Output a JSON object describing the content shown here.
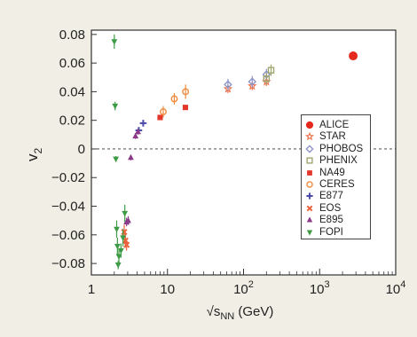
{
  "chart_data": {
    "type": "scatter",
    "xscale": "log",
    "xlim": [
      1,
      10000
    ],
    "ylim": [
      -0.088,
      0.083
    ],
    "ylabel": "v",
    "ylabel_sub": "2",
    "xlabel_root": "√s",
    "xlabel_sub": "NN",
    "xlabel_unit": " (GeV)",
    "x_ticks": [
      {
        "value": 1,
        "base": "1",
        "exp": ""
      },
      {
        "value": 10,
        "base": "10",
        "exp": ""
      },
      {
        "value": 100,
        "base": "10",
        "exp": "2"
      },
      {
        "value": 1000,
        "base": "10",
        "exp": "3"
      },
      {
        "value": 10000,
        "base": "10",
        "exp": "4"
      }
    ],
    "y_ticks": [
      {
        "value": 0.08,
        "label": "0.08"
      },
      {
        "value": 0.06,
        "label": "0.06"
      },
      {
        "value": 0.04,
        "label": "0.04"
      },
      {
        "value": 0.02,
        "label": "0.02"
      },
      {
        "value": 0,
        "label": "0"
      },
      {
        "value": -0.02,
        "label": "−0.02"
      },
      {
        "value": -0.04,
        "label": "−0.04"
      },
      {
        "value": -0.06,
        "label": "−0.06"
      },
      {
        "value": -0.08,
        "label": "−0.08"
      }
    ],
    "zero_line": "dashed",
    "grid": false,
    "legend_position": "right",
    "series": [
      {
        "name": "ALICE",
        "marker": "circle-filled",
        "color": "#e52a1d",
        "points": [
          {
            "x": 2760,
            "y": 0.065,
            "err": 0.003
          }
        ]
      },
      {
        "name": "STAR",
        "marker": "star-open",
        "color": "#ec6f49",
        "points": [
          {
            "x": 62.4,
            "y": 0.042,
            "err": 0.003
          },
          {
            "x": 130,
            "y": 0.044,
            "err": 0.003
          },
          {
            "x": 200,
            "y": 0.047,
            "err": 0.003
          }
        ]
      },
      {
        "name": "PHOBOS",
        "marker": "diamond-open",
        "color": "#8e95c6",
        "points": [
          {
            "x": 62.4,
            "y": 0.045,
            "err": 0.004
          },
          {
            "x": 130,
            "y": 0.047,
            "err": 0.004
          },
          {
            "x": 200,
            "y": 0.052,
            "err": 0.004
          }
        ]
      },
      {
        "name": "PHENIX",
        "marker": "square-open",
        "color": "#a1a56e",
        "points": [
          {
            "x": 200,
            "y": 0.049,
            "err": 0.004
          },
          {
            "x": 230,
            "y": 0.055,
            "err": 0.004
          }
        ]
      },
      {
        "name": "NA49",
        "marker": "square-filled",
        "color": "#e3372b",
        "points": [
          {
            "x": 8.0,
            "y": 0.022,
            "err": 0.001
          },
          {
            "x": 17.2,
            "y": 0.029,
            "err": 0.001
          }
        ]
      },
      {
        "name": "CERES",
        "marker": "circle-open",
        "color": "#ef8a3d",
        "points": [
          {
            "x": 8.8,
            "y": 0.026,
            "err": 0.004
          },
          {
            "x": 12.3,
            "y": 0.035,
            "err": 0.004
          },
          {
            "x": 17.3,
            "y": 0.04,
            "err": 0.005
          }
        ]
      },
      {
        "name": "E877",
        "marker": "cross-plus",
        "color": "#4b4baa",
        "points": [
          {
            "x": 4.2,
            "y": 0.013,
            "err": 0.002
          },
          {
            "x": 4.8,
            "y": 0.018,
            "err": 0.002
          }
        ]
      },
      {
        "name": "EOS",
        "marker": "cross-x",
        "color": "#e9623a",
        "points": [
          {
            "x": 2.7,
            "y": -0.058,
            "err": 0.005
          },
          {
            "x": 2.8,
            "y": -0.064,
            "err": 0.005
          },
          {
            "x": 2.9,
            "y": -0.067,
            "err": 0.004
          }
        ]
      },
      {
        "name": "E895",
        "marker": "triangle-up",
        "color": "#8b3a8a",
        "points": [
          {
            "x": 3.3,
            "y": -0.006,
            "err": 0.002
          },
          {
            "x": 3.8,
            "y": 0.009,
            "err": 0.002
          },
          {
            "x": 4.1,
            "y": 0.012,
            "err": 0.002
          },
          {
            "x": 2.9,
            "y": -0.051,
            "err": 0.003
          },
          {
            "x": 3.05,
            "y": -0.05,
            "err": 0.003
          }
        ]
      },
      {
        "name": "FOPI",
        "marker": "triangle-down",
        "color": "#3e9b45",
        "points": [
          {
            "x": 2.0,
            "y": 0.075,
            "err": 0.005
          },
          {
            "x": 2.05,
            "y": 0.03,
            "err": 0.003
          },
          {
            "x": 2.1,
            "y": -0.007,
            "err": 0.002
          },
          {
            "x": 2.15,
            "y": -0.056,
            "err": 0.006
          },
          {
            "x": 2.2,
            "y": -0.068,
            "err": 0.006
          },
          {
            "x": 2.3,
            "y": -0.075,
            "err": 0.005
          },
          {
            "x": 2.25,
            "y": -0.081,
            "err": 0.003
          },
          {
            "x": 2.45,
            "y": -0.071,
            "err": 0.005
          },
          {
            "x": 2.6,
            "y": -0.062,
            "err": 0.006
          },
          {
            "x": 2.75,
            "y": -0.045,
            "err": 0.006
          }
        ]
      }
    ]
  }
}
